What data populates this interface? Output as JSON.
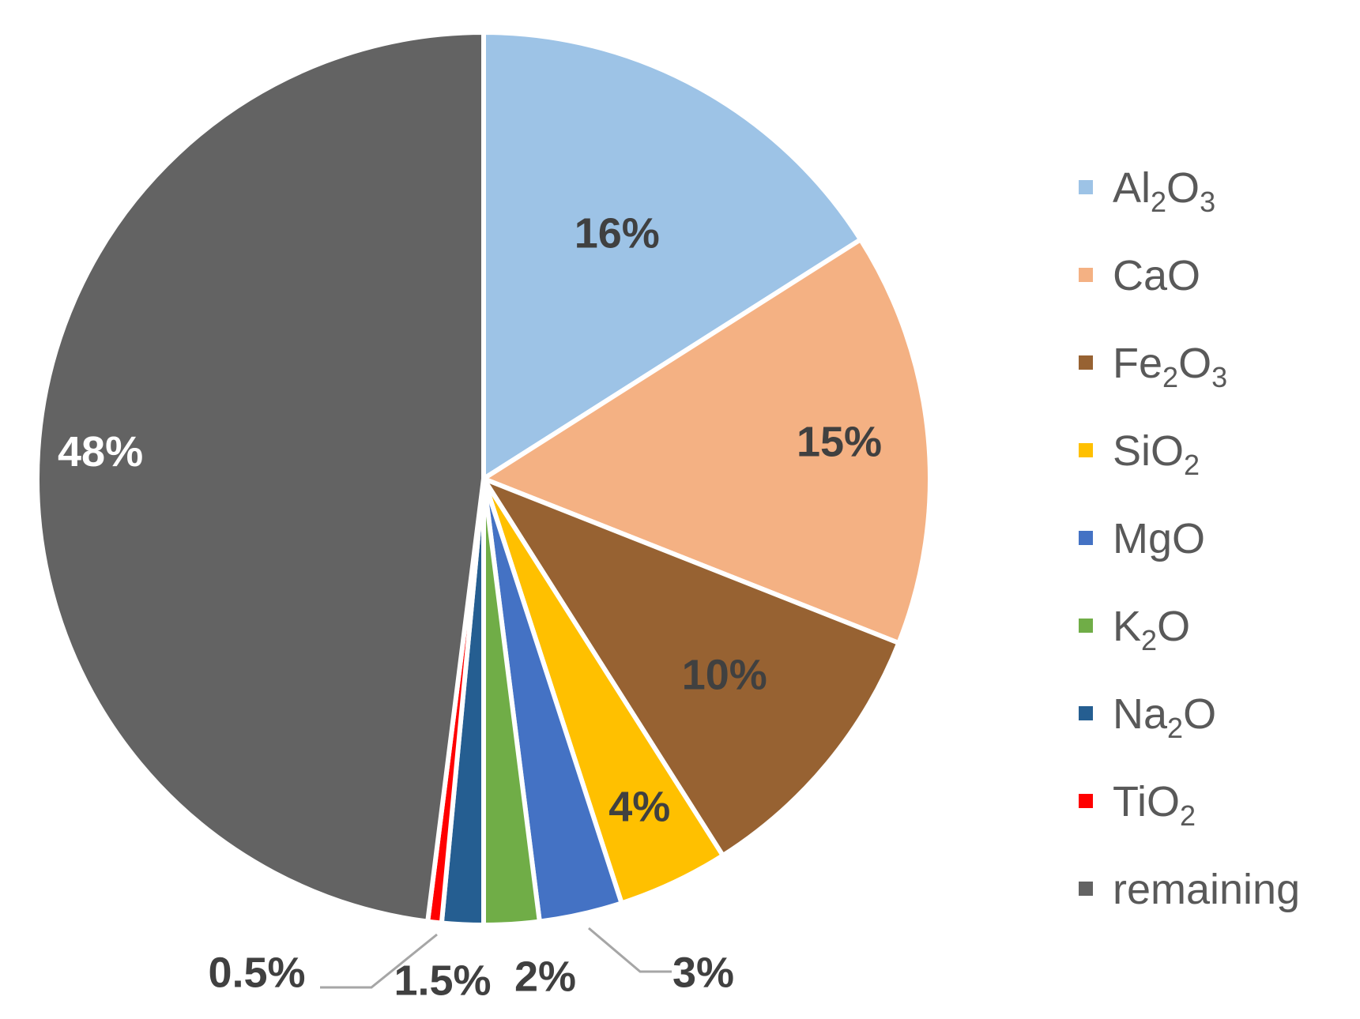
{
  "chart_data": {
    "type": "pie",
    "slices": [
      {
        "name": "Al2O3",
        "legend_main": "Al",
        "legend_sub1": "2",
        "legend_mid": "O",
        "legend_sub2": "3",
        "value": 16,
        "label": "16%",
        "color": "#9DC3E6",
        "label_color": "#404040"
      },
      {
        "name": "CaO",
        "legend_main": "CaO",
        "legend_sub1": "",
        "legend_mid": "",
        "legend_sub2": "",
        "value": 15,
        "label": "15%",
        "color": "#F4B183",
        "label_color": "#404040"
      },
      {
        "name": "Fe2O3",
        "legend_main": "Fe",
        "legend_sub1": "2",
        "legend_mid": "O",
        "legend_sub2": "3",
        "value": 10,
        "label": "10%",
        "color": "#976232",
        "label_color": "#404040"
      },
      {
        "name": "SiO2",
        "legend_main": "SiO",
        "legend_sub1": "2",
        "legend_mid": "",
        "legend_sub2": "",
        "value": 4,
        "label": "4%",
        "color": "#FFC000",
        "label_color": "#404040"
      },
      {
        "name": "MgO",
        "legend_main": "MgO",
        "legend_sub1": "",
        "legend_mid": "",
        "legend_sub2": "",
        "value": 3,
        "label": "3%",
        "color": "#4472C4",
        "label_color": "#404040"
      },
      {
        "name": "K2O",
        "legend_main": "K",
        "legend_sub1": "2",
        "legend_mid": "O",
        "legend_sub2": "",
        "value": 2,
        "label": "2%",
        "color": "#70AD47",
        "label_color": "#404040"
      },
      {
        "name": "Na2O",
        "legend_main": "Na",
        "legend_sub1": "2",
        "legend_mid": "O",
        "legend_sub2": "",
        "value": 1.5,
        "label": "1.5%",
        "color": "#255E91",
        "label_color": "#404040"
      },
      {
        "name": "TiO2",
        "legend_main": "TiO",
        "legend_sub1": "2",
        "legend_mid": "",
        "legend_sub2": "",
        "value": 0.5,
        "label": "0.5%",
        "color": "#FF0000",
        "label_color": "#404040"
      },
      {
        "name": "remaining",
        "legend_main": "remaining",
        "legend_sub1": "",
        "legend_mid": "",
        "legend_sub2": "",
        "value": 48,
        "label": "48%",
        "color": "#636363",
        "label_color": "#FFFFFF"
      }
    ],
    "legend_position": "right",
    "start_angle": "12 o'clock, clockwise"
  }
}
